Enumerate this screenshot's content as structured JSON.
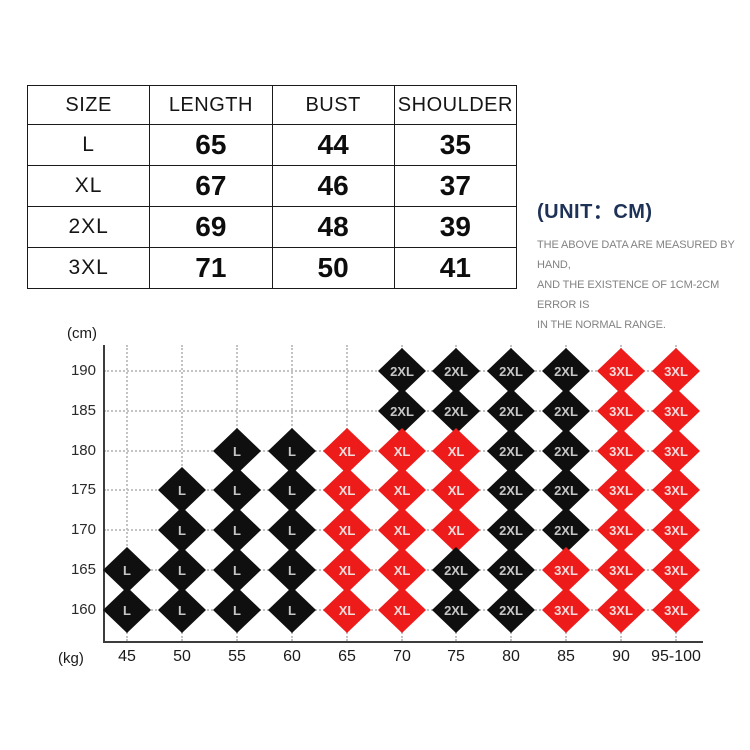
{
  "size_table": {
    "headers": [
      "SIZE",
      "LENGTH",
      "BUST",
      "SHOULDER"
    ],
    "rows": [
      [
        "L",
        "65",
        "44",
        "35"
      ],
      [
        "XL",
        "67",
        "46",
        "37"
      ],
      [
        "2XL",
        "69",
        "48",
        "39"
      ],
      [
        "3XL",
        "71",
        "50",
        "41"
      ]
    ]
  },
  "unit_note": {
    "title": "(UNIT：CM)",
    "title_color": "#1e3257",
    "text_color": "#828282",
    "lines": [
      "THE ABOVE DATA ARE MEASURED BY HAND,",
      "AND THE EXISTENCE OF 1CM-2CM ERROR IS",
      "IN THE NORMAL RANGE."
    ]
  },
  "chart_data": {
    "type": "scatter",
    "title": "",
    "xlabel": "(kg)",
    "ylabel": "(cm)",
    "grid": true,
    "marker_shape": "diamond",
    "x_categories": [
      "45",
      "50",
      "55",
      "60",
      "65",
      "70",
      "75",
      "80",
      "85",
      "90",
      "95-100"
    ],
    "y_categories": [
      "190",
      "185",
      "180",
      "175",
      "170",
      "165",
      "160"
    ],
    "colors": {
      "black": "#0f0f0f",
      "red": "#ee1b1b"
    },
    "text_colors": {
      "black": "#c6c6c6",
      "red": "#f6dcdc"
    },
    "rows": [
      {
        "height": "190",
        "markers": [
          {
            "x": "70",
            "size": "2XL",
            "color": "black"
          },
          {
            "x": "75",
            "size": "2XL",
            "color": "black"
          },
          {
            "x": "80",
            "size": "2XL",
            "color": "black"
          },
          {
            "x": "85",
            "size": "2XL",
            "color": "black"
          },
          {
            "x": "90",
            "size": "3XL",
            "color": "red"
          },
          {
            "x": "95-100",
            "size": "3XL",
            "color": "red"
          }
        ]
      },
      {
        "height": "185",
        "markers": [
          {
            "x": "70",
            "size": "2XL",
            "color": "black"
          },
          {
            "x": "75",
            "size": "2XL",
            "color": "black"
          },
          {
            "x": "80",
            "size": "2XL",
            "color": "black"
          },
          {
            "x": "85",
            "size": "2XL",
            "color": "black"
          },
          {
            "x": "90",
            "size": "3XL",
            "color": "red"
          },
          {
            "x": "95-100",
            "size": "3XL",
            "color": "red"
          }
        ]
      },
      {
        "height": "180",
        "markers": [
          {
            "x": "55",
            "size": "L",
            "color": "black"
          },
          {
            "x": "60",
            "size": "L",
            "color": "black"
          },
          {
            "x": "65",
            "size": "XL",
            "color": "red"
          },
          {
            "x": "70",
            "size": "XL",
            "color": "red"
          },
          {
            "x": "75",
            "size": "XL",
            "color": "red"
          },
          {
            "x": "80",
            "size": "2XL",
            "color": "black"
          },
          {
            "x": "85",
            "size": "2XL",
            "color": "black"
          },
          {
            "x": "90",
            "size": "3XL",
            "color": "red"
          },
          {
            "x": "95-100",
            "size": "3XL",
            "color": "red"
          }
        ]
      },
      {
        "height": "175",
        "markers": [
          {
            "x": "50",
            "size": "L",
            "color": "black"
          },
          {
            "x": "55",
            "size": "L",
            "color": "black"
          },
          {
            "x": "60",
            "size": "L",
            "color": "black"
          },
          {
            "x": "65",
            "size": "XL",
            "color": "red"
          },
          {
            "x": "70",
            "size": "XL",
            "color": "red"
          },
          {
            "x": "75",
            "size": "XL",
            "color": "red"
          },
          {
            "x": "80",
            "size": "2XL",
            "color": "black"
          },
          {
            "x": "85",
            "size": "2XL",
            "color": "black"
          },
          {
            "x": "90",
            "size": "3XL",
            "color": "red"
          },
          {
            "x": "95-100",
            "size": "3XL",
            "color": "red"
          }
        ]
      },
      {
        "height": "170",
        "markers": [
          {
            "x": "50",
            "size": "L",
            "color": "black"
          },
          {
            "x": "55",
            "size": "L",
            "color": "black"
          },
          {
            "x": "60",
            "size": "L",
            "color": "black"
          },
          {
            "x": "65",
            "size": "XL",
            "color": "red"
          },
          {
            "x": "70",
            "size": "XL",
            "color": "red"
          },
          {
            "x": "75",
            "size": "XL",
            "color": "red"
          },
          {
            "x": "80",
            "size": "2XL",
            "color": "black"
          },
          {
            "x": "85",
            "size": "2XL",
            "color": "black"
          },
          {
            "x": "90",
            "size": "3XL",
            "color": "red"
          },
          {
            "x": "95-100",
            "size": "3XL",
            "color": "red"
          }
        ]
      },
      {
        "height": "165",
        "markers": [
          {
            "x": "45",
            "size": "L",
            "color": "black"
          },
          {
            "x": "50",
            "size": "L",
            "color": "black"
          },
          {
            "x": "55",
            "size": "L",
            "color": "black"
          },
          {
            "x": "60",
            "size": "L",
            "color": "black"
          },
          {
            "x": "65",
            "size": "XL",
            "color": "red"
          },
          {
            "x": "70",
            "size": "XL",
            "color": "red"
          },
          {
            "x": "75",
            "size": "2XL",
            "color": "black"
          },
          {
            "x": "80",
            "size": "2XL",
            "color": "black"
          },
          {
            "x": "85",
            "size": "3XL",
            "color": "red"
          },
          {
            "x": "90",
            "size": "3XL",
            "color": "red"
          },
          {
            "x": "95-100",
            "size": "3XL",
            "color": "red"
          }
        ]
      },
      {
        "height": "160",
        "markers": [
          {
            "x": "45",
            "size": "L",
            "color": "black"
          },
          {
            "x": "50",
            "size": "L",
            "color": "black"
          },
          {
            "x": "55",
            "size": "L",
            "color": "black"
          },
          {
            "x": "60",
            "size": "L",
            "color": "black"
          },
          {
            "x": "65",
            "size": "XL",
            "color": "red"
          },
          {
            "x": "70",
            "size": "XL",
            "color": "red"
          },
          {
            "x": "75",
            "size": "2XL",
            "color": "black"
          },
          {
            "x": "80",
            "size": "2XL",
            "color": "black"
          },
          {
            "x": "85",
            "size": "3XL",
            "color": "red"
          },
          {
            "x": "90",
            "size": "3XL",
            "color": "red"
          },
          {
            "x": "95-100",
            "size": "3XL",
            "color": "red"
          }
        ]
      }
    ]
  }
}
